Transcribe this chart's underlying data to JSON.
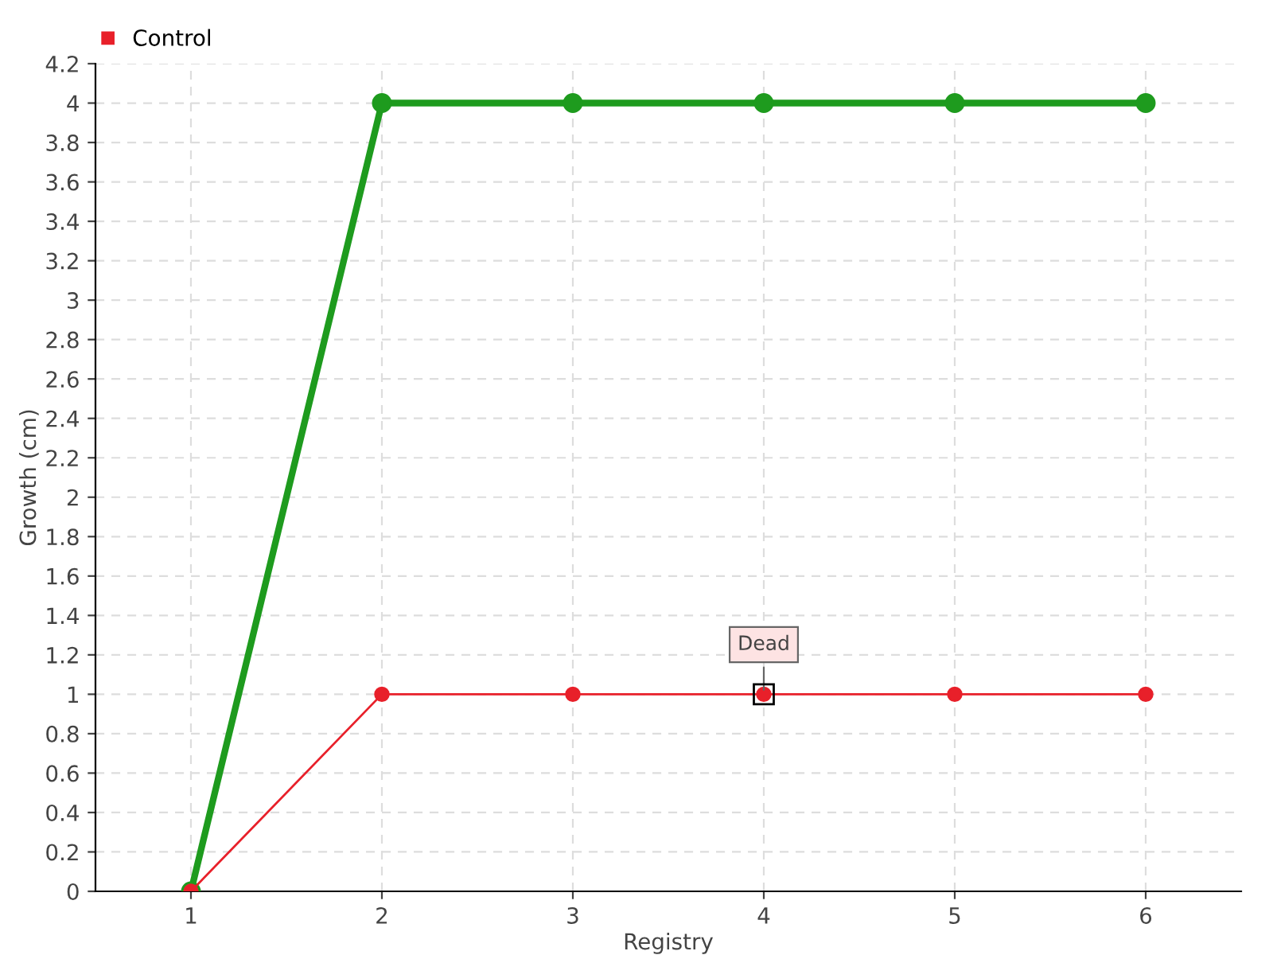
{
  "chart_data": {
    "type": "line",
    "xlabel": "Registry",
    "ylabel": "Growth (cm)",
    "x": [
      1,
      2,
      3,
      4,
      5,
      6
    ],
    "series": [
      {
        "color": "#1e9b1e",
        "values": [
          0,
          4,
          4,
          4,
          4,
          4
        ]
      },
      {
        "name": "Control",
        "color": "#e8202a",
        "values": [
          0,
          1,
          1,
          1,
          1,
          1
        ]
      }
    ],
    "xlim": [
      0.5,
      6.5
    ],
    "xticks": [
      1,
      2,
      3,
      4,
      5,
      6
    ],
    "ylim": [
      0,
      4.2
    ],
    "yticks": [
      0,
      0.2,
      0.4,
      0.6,
      0.8,
      1,
      1.2,
      1.4,
      1.6,
      1.8,
      2,
      2.2,
      2.4,
      2.6,
      2.8,
      3,
      3.2,
      3.4,
      3.6,
      3.8,
      4,
      4.2
    ],
    "annotations": [
      {
        "text": "Dead",
        "x": 4,
        "y": 1
      }
    ],
    "grid": true,
    "legend": "top left",
    "marker": "circle",
    "line_style": "solid"
  }
}
